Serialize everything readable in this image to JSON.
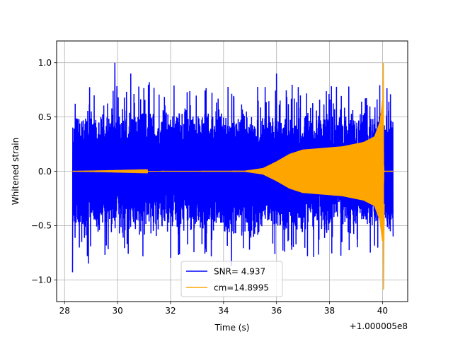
{
  "chart_data": {
    "type": "line",
    "title": "",
    "xlabel": "Time (s)",
    "ylabel": "Whitened strain",
    "x_offset_label": "+1.000005e8",
    "xlim": [
      27.7,
      40.95
    ],
    "ylim": [
      -1.2,
      1.2
    ],
    "x_ticks": [
      28,
      30,
      32,
      34,
      36,
      38,
      40
    ],
    "x_tick_labels": [
      "28",
      "30",
      "32",
      "34",
      "36",
      "38",
      "40"
    ],
    "y_ticks": [
      -1.0,
      -0.5,
      0.0,
      0.5,
      1.0
    ],
    "y_tick_labels": [
      "−1.0",
      "−0.5",
      "0.0",
      "0.5",
      "1.0"
    ],
    "grid": true,
    "legend_position": "lower-center",
    "series": [
      {
        "name": "SNR= 4.937",
        "color": "#0000ff",
        "x_range": [
          28.3,
          40.4
        ],
        "description": "noisy whitened strain",
        "peaks": [
          {
            "x": 28.3,
            "y": -0.93
          },
          {
            "x": 28.33,
            "y": 0.18
          },
          {
            "x": 28.9,
            "y": -0.85
          },
          {
            "x": 29.9,
            "y": 1.0
          },
          {
            "x": 30.5,
            "y": 0.9
          },
          {
            "x": 31.2,
            "y": 0.82
          },
          {
            "x": 34.3,
            "y": -0.87
          },
          {
            "x": 36.0,
            "y": 0.9
          },
          {
            "x": 40.3,
            "y": 0.71
          },
          {
            "x": 40.4,
            "y": -0.6
          }
        ]
      },
      {
        "name": "cm=14.8995",
        "color": "#ffa500",
        "x_range": [
          28.3,
          40.4
        ],
        "description": "chirp template",
        "envelope": [
          {
            "x": 28.3,
            "y": 0.0
          },
          {
            "x": 34.8,
            "y": 0.005
          },
          {
            "x": 35.5,
            "y": 0.03
          },
          {
            "x": 36.0,
            "y": 0.09
          },
          {
            "x": 36.5,
            "y": 0.16
          },
          {
            "x": 37.0,
            "y": 0.2
          },
          {
            "x": 37.5,
            "y": 0.21
          },
          {
            "x": 38.5,
            "y": 0.23
          },
          {
            "x": 39.3,
            "y": 0.27
          },
          {
            "x": 39.7,
            "y": 0.32
          },
          {
            "x": 39.9,
            "y": 0.45
          },
          {
            "x": 40.0,
            "y": 0.65
          },
          {
            "x": 40.05,
            "y": 0.0
          },
          {
            "x": 40.4,
            "y": 0.0
          }
        ],
        "peaks": [
          {
            "x": 40.03,
            "y": 1.0
          },
          {
            "x": 40.03,
            "y": -1.09
          }
        ]
      }
    ]
  }
}
